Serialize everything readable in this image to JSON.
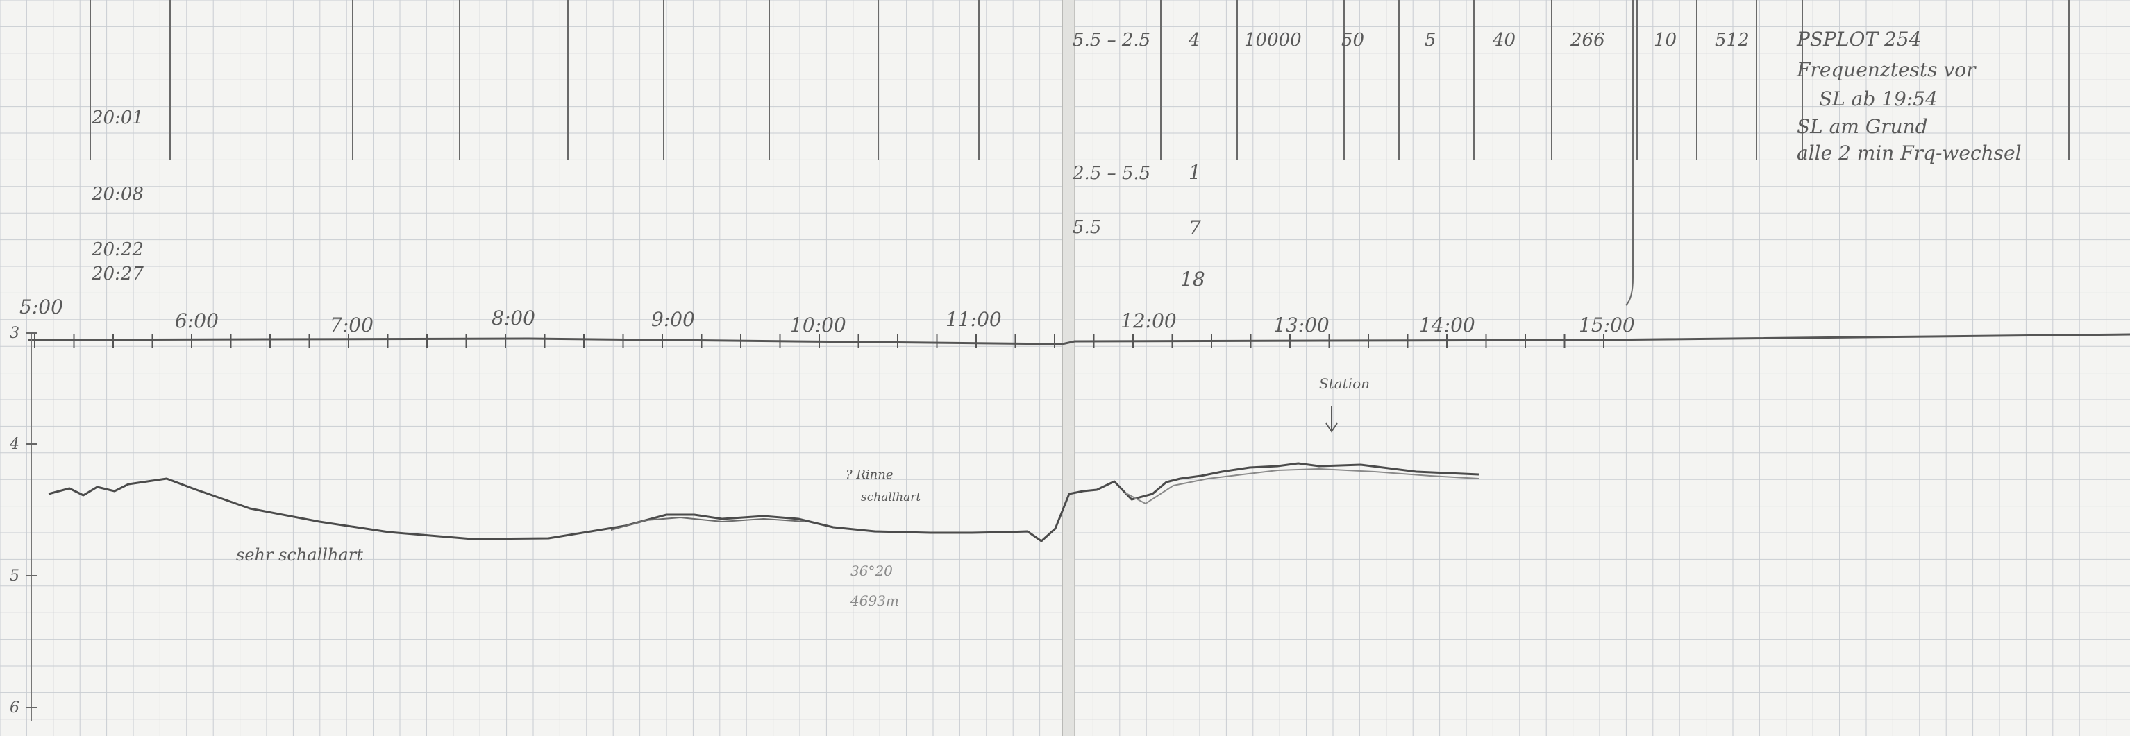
{
  "left_page": {
    "time_notes": [
      "20:01",
      "20:08",
      "20:22",
      "20:27"
    ],
    "depth_labels": [
      "3",
      "4",
      "5",
      "6"
    ],
    "axis_hours": [
      "5:00",
      "6:00",
      "7:00",
      "8:00",
      "9:00",
      "10:00",
      "11:00"
    ],
    "annotations": {
      "seafloor_note": "sehr schallhart",
      "channel_note_1": "? Rinne",
      "channel_note_2": "schallhart",
      "position_1": "36°20",
      "position_2": "4693m"
    }
  },
  "right_page": {
    "axis_hours": [
      "12:00",
      "13:00",
      "14:00",
      "15:00"
    ],
    "table_row_1": [
      "5.5 – 2.5",
      "4",
      "10000",
      "50",
      "5",
      "40",
      "266",
      "10",
      "512"
    ],
    "table_col_ranges": [
      "2.5 – 5.5",
      "5.5"
    ],
    "table_col_values": [
      "1",
      "7",
      "18"
    ],
    "notes": [
      "PSPLOT 254",
      "Frequenztests vor",
      "SL ab 19:54",
      "SL am Grund",
      "alle 2 min Frq-wechsel"
    ],
    "station_label": "Station"
  },
  "colors": {
    "paper": "#f4f4f2",
    "grid": "#c9cdd2",
    "pencil": "#5a5a5a",
    "profile": "#4b4b4b"
  }
}
